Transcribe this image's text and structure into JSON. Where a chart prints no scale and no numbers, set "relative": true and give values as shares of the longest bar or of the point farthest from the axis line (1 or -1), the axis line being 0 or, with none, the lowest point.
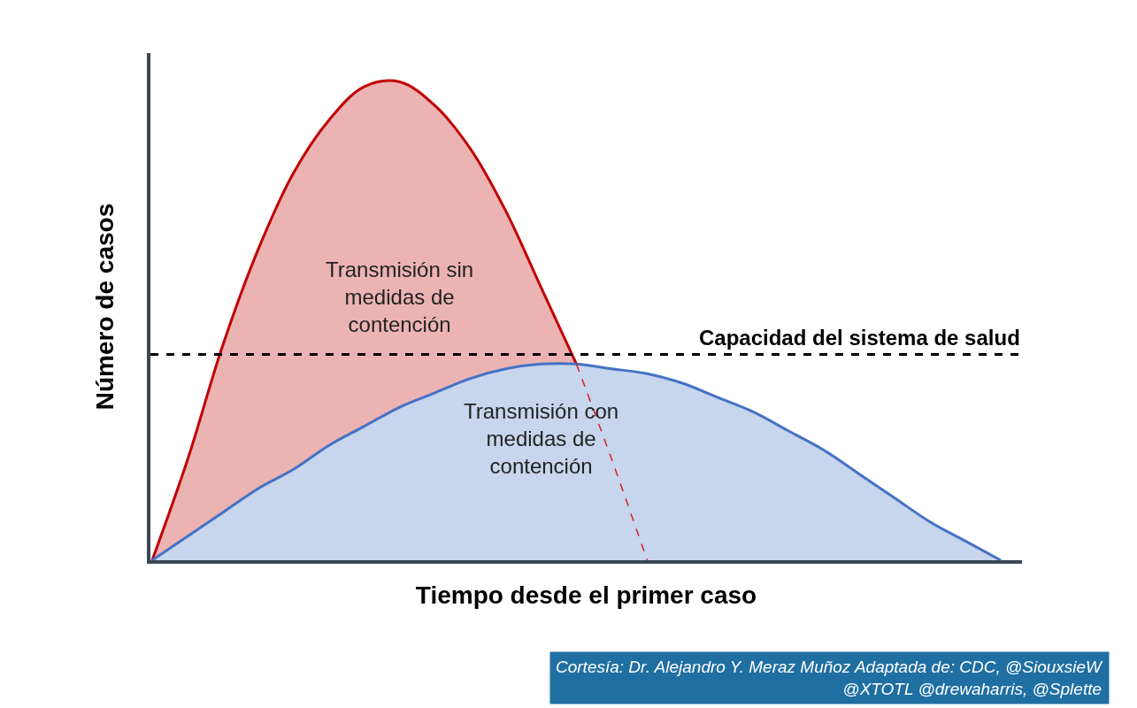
{
  "chart_data": {
    "type": "area",
    "relative": true,
    "xlabel": "Tiempo desde el primer caso",
    "ylabel": "Número de casos",
    "categories": [
      null,
      null,
      null,
      null,
      null,
      null,
      null,
      null,
      null,
      null,
      null,
      null,
      null,
      null,
      null,
      null,
      null,
      null,
      null,
      null,
      null,
      null,
      null,
      null,
      null
    ],
    "series": [
      {
        "name": "Transmisión sin medidas de contención",
        "color": "#c00000",
        "values": [
          0,
          0.21,
          0.45,
          0.65,
          0.81,
          0.92,
          0.99,
          1,
          0.95,
          0.86,
          0.73,
          0.57,
          0.41,
          null,
          null,
          null,
          null,
          null,
          null,
          null,
          null,
          null,
          null,
          null,
          null
        ]
      },
      {
        "name": "Transmisión con medidas de contención",
        "color": "#4472c4",
        "values": [
          0,
          0.05,
          0.1,
          0.15,
          0.19,
          0.24,
          0.28,
          0.32,
          0.35,
          0.38,
          0.4,
          0.41,
          0.41,
          0.4,
          0.39,
          0.37,
          0.34,
          0.31,
          0.27,
          0.23,
          0.18,
          0.13,
          0.08,
          0.04,
          0
        ]
      },
      {
        "type": "line",
        "line_style": "dashed",
        "color": "#d42020",
        "values": [
          null,
          null,
          null,
          null,
          null,
          null,
          null,
          null,
          null,
          null,
          null,
          null,
          0.41,
          0.21,
          0,
          null,
          null,
          null,
          null,
          null,
          null,
          null,
          null,
          null,
          null
        ]
      }
    ],
    "ref_lines": [
      {
        "axis": "y",
        "value": 0.43,
        "label": "Capacidad del sistema de salud",
        "color": "#000000",
        "line_style": "dashed"
      }
    ],
    "grid": false,
    "legend": false,
    "annotations": [
      "Cortesía: Dr. Alejandro Y. Meraz Muñoz Adaptada de: CDC, @SiouxsieW @XTOTL @drewaharris, @Splette"
    ]
  }
}
